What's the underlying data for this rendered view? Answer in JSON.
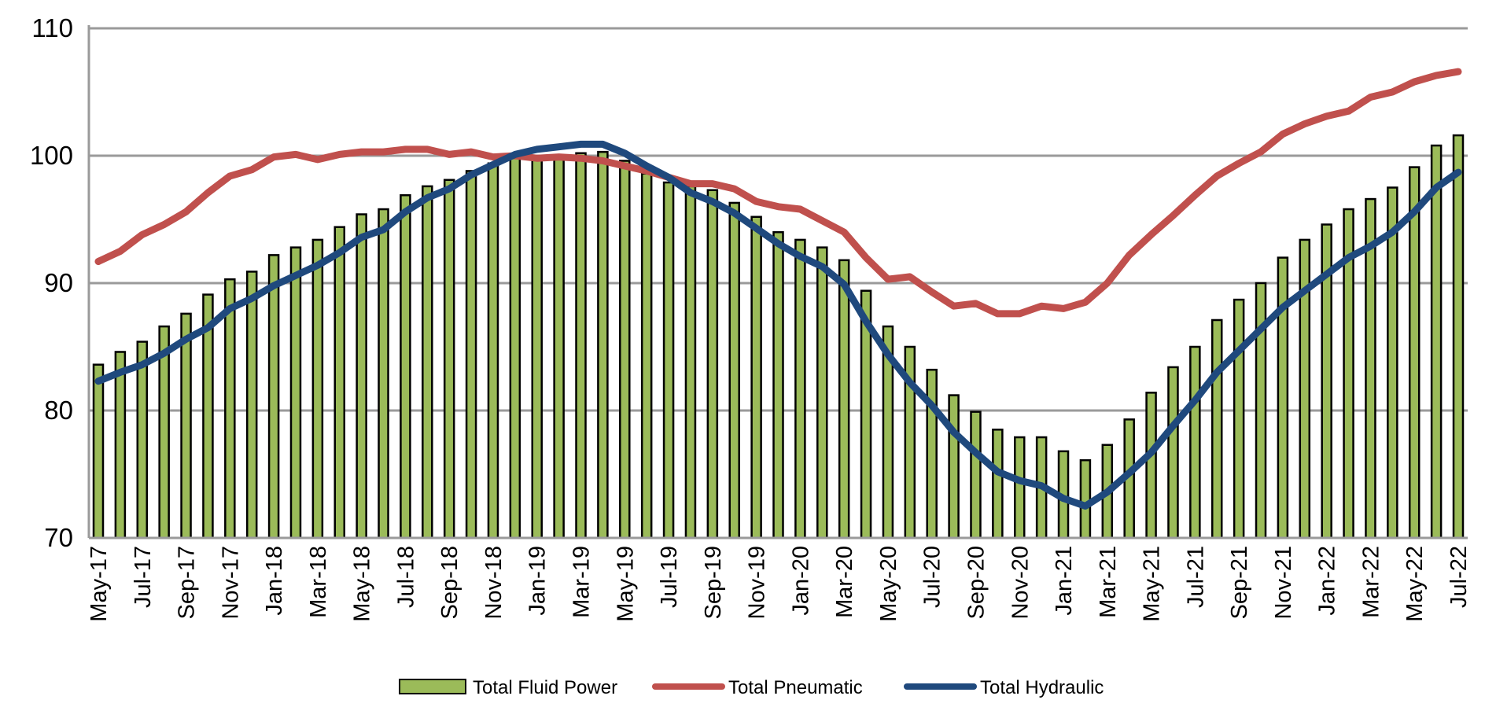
{
  "chart_data": {
    "type": "bar",
    "title": "",
    "xlabel": "",
    "ylabel": "",
    "ylim": [
      70,
      110
    ],
    "yticks": [
      70,
      80,
      90,
      100,
      110
    ],
    "grid": true,
    "legend_position": "bottom",
    "categories": [
      "May-17",
      "Jun-17",
      "Jul-17",
      "Aug-17",
      "Sep-17",
      "Oct-17",
      "Nov-17",
      "Dec-17",
      "Jan-18",
      "Feb-18",
      "Mar-18",
      "Apr-18",
      "May-18",
      "Jun-18",
      "Jul-18",
      "Aug-18",
      "Sep-18",
      "Oct-18",
      "Nov-18",
      "Dec-18",
      "Jan-19",
      "Feb-19",
      "Mar-19",
      "Apr-19",
      "May-19",
      "Jun-19",
      "Jul-19",
      "Aug-19",
      "Sep-19",
      "Oct-19",
      "Nov-19",
      "Dec-19",
      "Jan-20",
      "Feb-20",
      "Mar-20",
      "Apr-20",
      "May-20",
      "Jun-20",
      "Jul-20",
      "Aug-20",
      "Sep-20",
      "Oct-20",
      "Nov-20",
      "Dec-20",
      "Jan-21",
      "Feb-21",
      "Mar-21",
      "Apr-21",
      "May-21",
      "Jun-21",
      "Jul-21",
      "Aug-21",
      "Sep-21",
      "Oct-21",
      "Nov-21",
      "Dec-21",
      "Jan-22",
      "Feb-22",
      "Mar-22",
      "Apr-22",
      "May-22",
      "Jun-22",
      "Jul-22"
    ],
    "tick_labels": [
      "May-17",
      "Jul-17",
      "Sep-17",
      "Nov-17",
      "Jan-18",
      "Mar-18",
      "May-18",
      "Jul-18",
      "Sep-18",
      "Nov-18",
      "Jan-19",
      "Mar-19",
      "May-19",
      "Jul-19",
      "Sep-19",
      "Nov-19",
      "Jan-20",
      "Mar-20",
      "May-20",
      "Jul-20",
      "Sep-20",
      "Nov-20",
      "Jan-21",
      "Mar-21",
      "May-21",
      "Jul-21",
      "Sep-21",
      "Nov-21",
      "Jan-22",
      "Mar-22",
      "May-22",
      "Jul-22"
    ],
    "series": [
      {
        "name": "Total Fluid Power",
        "kind": "bar",
        "color": "#9bbb59",
        "values": [
          83.6,
          84.6,
          85.4,
          86.6,
          87.6,
          89.1,
          90.3,
          90.9,
          92.2,
          92.8,
          93.4,
          94.4,
          95.4,
          95.8,
          96.9,
          97.6,
          98.1,
          98.8,
          99.4,
          99.8,
          99.9,
          100.0,
          100.2,
          100.3,
          99.6,
          98.6,
          97.9,
          97.6,
          97.3,
          96.3,
          95.2,
          94.0,
          93.4,
          92.8,
          91.8,
          89.4,
          86.6,
          85.0,
          83.2,
          81.2,
          79.9,
          78.5,
          77.9,
          77.9,
          76.8,
          76.1,
          77.3,
          79.3,
          81.4,
          83.4,
          85.0,
          87.1,
          88.7,
          90.0,
          92.0,
          93.4,
          94.6,
          95.8,
          96.6,
          97.5,
          99.1,
          100.8,
          101.6
        ]
      },
      {
        "name": "Total Pneumatic",
        "kind": "line",
        "color": "#c0504d",
        "values": [
          91.7,
          92.5,
          93.8,
          94.6,
          95.6,
          97.1,
          98.4,
          98.9,
          99.9,
          100.1,
          99.7,
          100.1,
          100.3,
          100.3,
          100.5,
          100.5,
          100.1,
          100.3,
          99.9,
          100.0,
          99.8,
          99.9,
          99.8,
          99.6,
          99.2,
          98.8,
          98.3,
          97.8,
          97.8,
          97.4,
          96.4,
          96.0,
          95.8,
          94.9,
          94.0,
          92.0,
          90.3,
          90.5,
          89.3,
          88.2,
          88.4,
          87.6,
          87.6,
          88.2,
          88.0,
          88.5,
          90.0,
          92.2,
          93.8,
          95.3,
          96.9,
          98.4,
          99.4,
          100.3,
          101.7,
          102.5,
          103.1,
          103.5,
          104.6,
          105.0,
          105.8,
          106.3,
          106.6
        ]
      },
      {
        "name": "Total Hydraulic",
        "kind": "line",
        "color": "#1f497d",
        "values": [
          82.3,
          83.0,
          83.6,
          84.5,
          85.6,
          86.5,
          88.0,
          88.8,
          89.8,
          90.6,
          91.4,
          92.4,
          93.6,
          94.2,
          95.6,
          96.7,
          97.4,
          98.5,
          99.3,
          100.1,
          100.5,
          100.7,
          100.9,
          100.9,
          100.2,
          99.2,
          98.3,
          97.1,
          96.4,
          95.5,
          94.3,
          93.1,
          92.1,
          91.3,
          89.9,
          87.0,
          84.4,
          82.2,
          80.4,
          78.3,
          76.7,
          75.2,
          74.5,
          74.1,
          73.1,
          72.5,
          73.6,
          75.1,
          76.7,
          78.8,
          80.8,
          83.0,
          84.7,
          86.4,
          88.1,
          89.4,
          90.7,
          92.0,
          92.9,
          94.0,
          95.6,
          97.5,
          98.7
        ]
      }
    ]
  }
}
